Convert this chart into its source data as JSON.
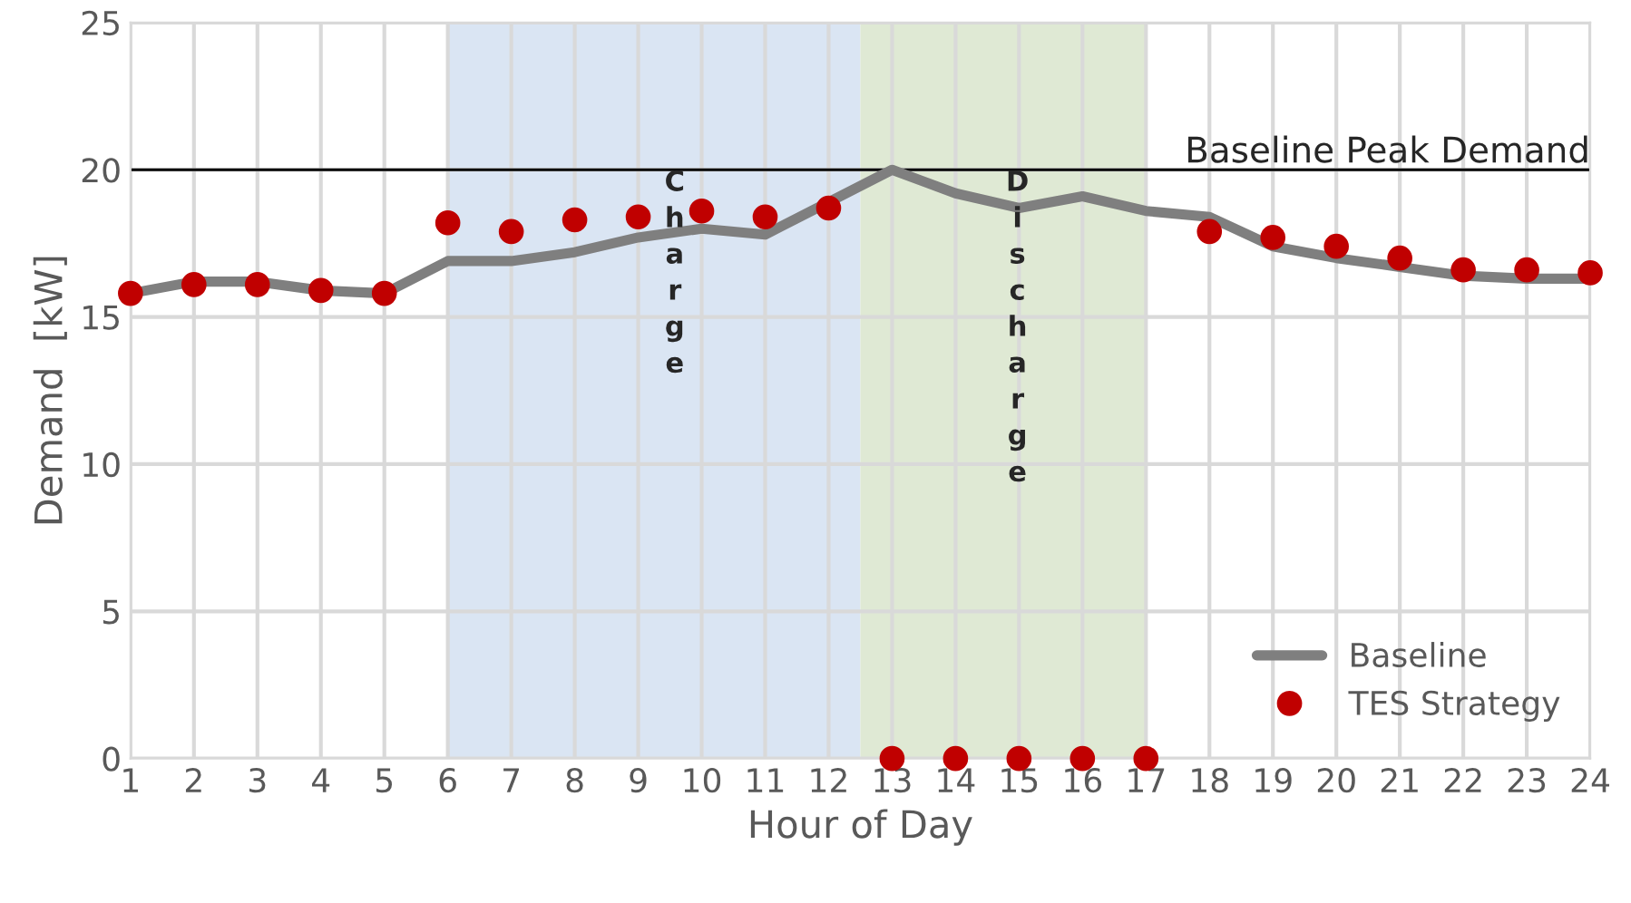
{
  "chart_data": {
    "type": "line",
    "xlabel": "Hour of Day",
    "ylabel": "Demand  [kW]",
    "x": [
      1,
      2,
      3,
      4,
      5,
      6,
      7,
      8,
      9,
      10,
      11,
      12,
      13,
      14,
      15,
      16,
      17,
      18,
      19,
      20,
      21,
      22,
      23,
      24
    ],
    "series": [
      {
        "name": "Baseline",
        "color": "#7f7f7f",
        "marker": "none",
        "line_style": "solid",
        "values": [
          15.8,
          16.2,
          16.2,
          15.9,
          15.8,
          16.9,
          16.9,
          17.2,
          17.7,
          18.0,
          17.8,
          18.9,
          20.0,
          19.2,
          18.7,
          19.1,
          18.6,
          18.4,
          17.4,
          17.0,
          16.7,
          16.4,
          16.3,
          16.3
        ]
      },
      {
        "name": "TES Strategy",
        "type": "scatter",
        "color": "#c00000",
        "marker": "circle",
        "values": [
          15.8,
          16.1,
          16.1,
          15.9,
          15.8,
          18.2,
          17.9,
          18.3,
          18.4,
          18.6,
          18.4,
          18.7,
          0,
          0,
          0,
          0,
          0,
          17.9,
          17.7,
          17.4,
          17.0,
          16.6,
          16.6,
          16.5
        ]
      }
    ],
    "xlim": [
      1,
      24
    ],
    "xticks": [
      1,
      2,
      3,
      4,
      5,
      6,
      7,
      8,
      9,
      10,
      11,
      12,
      13,
      14,
      15,
      16,
      17,
      18,
      19,
      20,
      21,
      22,
      23,
      24
    ],
    "ylim": [
      0,
      25
    ],
    "yticks": [
      0,
      5,
      10,
      15,
      20,
      25
    ],
    "ref_lines": [
      {
        "axis": "y",
        "value": 20,
        "label": "Baseline Peak Demand",
        "color": "#000000",
        "line_style": "solid"
      }
    ],
    "bands": [
      {
        "axis": "x",
        "from": 6,
        "to": 12.5,
        "label": "Charge",
        "color": "#dae5f3"
      },
      {
        "axis": "x",
        "from": 12.5,
        "to": 17,
        "label": "Discharge",
        "color": "#dfe9d4"
      }
    ],
    "grid": true,
    "legend": "bottom right"
  }
}
